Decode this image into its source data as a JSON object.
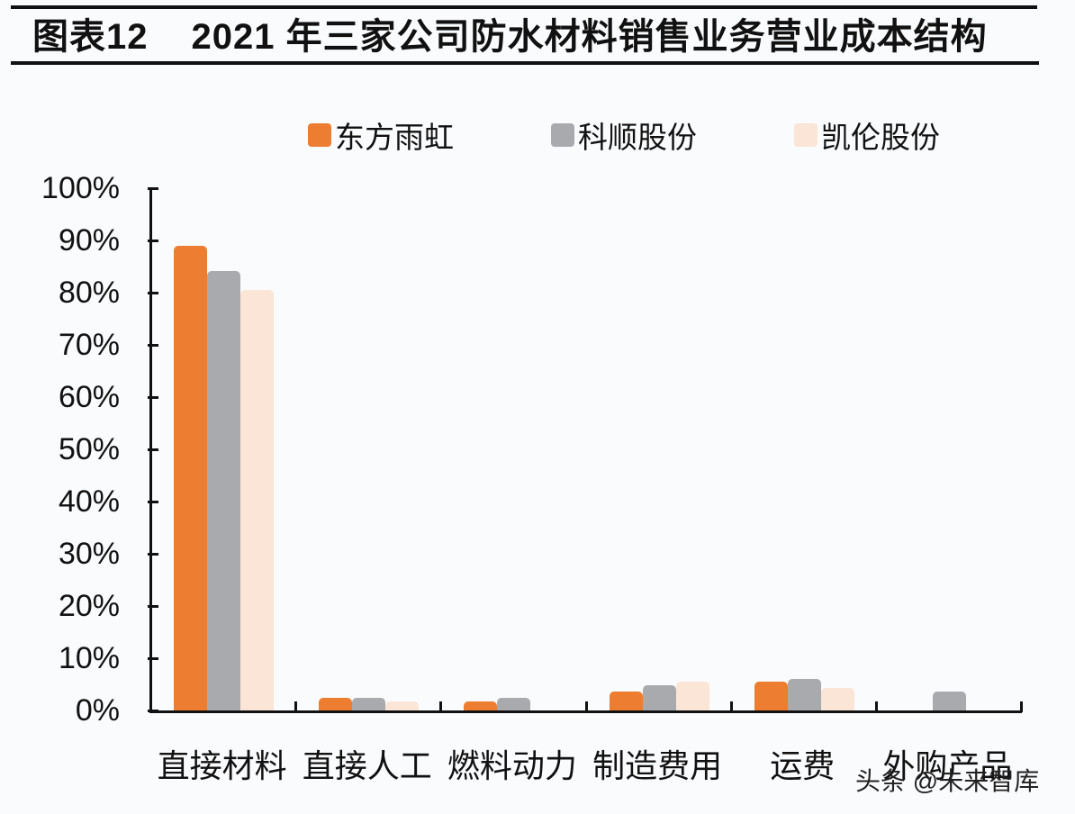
{
  "header": {
    "figure_label": "图表12",
    "title": "2021 年三家公司防水材料销售业务营业成本结构"
  },
  "legend": [
    {
      "label": "东方雨虹",
      "color": "#ED7D31"
    },
    {
      "label": "科顺股份",
      "color": "#A9AAAD"
    },
    {
      "label": "凯伦股份",
      "color": "#FBE5D6"
    }
  ],
  "watermark": "头条 @未来智库",
  "chart_data": {
    "type": "bar",
    "title": "2021 年三家公司防水材料销售业务营业成本结构",
    "xlabel": "",
    "ylabel": "",
    "ylim": [
      0,
      100
    ],
    "yticks": [
      "0%",
      "10%",
      "20%",
      "30%",
      "40%",
      "50%",
      "60%",
      "70%",
      "80%",
      "90%",
      "100%"
    ],
    "grid": false,
    "legend_position": "top",
    "categories": [
      "直接材料",
      "直接人工",
      "燃料动力",
      "制造费用",
      "运费",
      "外购产品"
    ],
    "series": [
      {
        "name": "东方雨虹",
        "color": "#ED7D31",
        "values": [
          89.0,
          2.5,
          1.8,
          3.6,
          5.5,
          0
        ]
      },
      {
        "name": "科顺股份",
        "color": "#A9AAAD",
        "values": [
          84.2,
          2.5,
          2.4,
          4.8,
          6.0,
          3.6
        ]
      },
      {
        "name": "凯伦股份",
        "color": "#FBE5D6",
        "values": [
          80.5,
          1.8,
          0,
          5.5,
          4.3,
          0
        ]
      }
    ]
  }
}
